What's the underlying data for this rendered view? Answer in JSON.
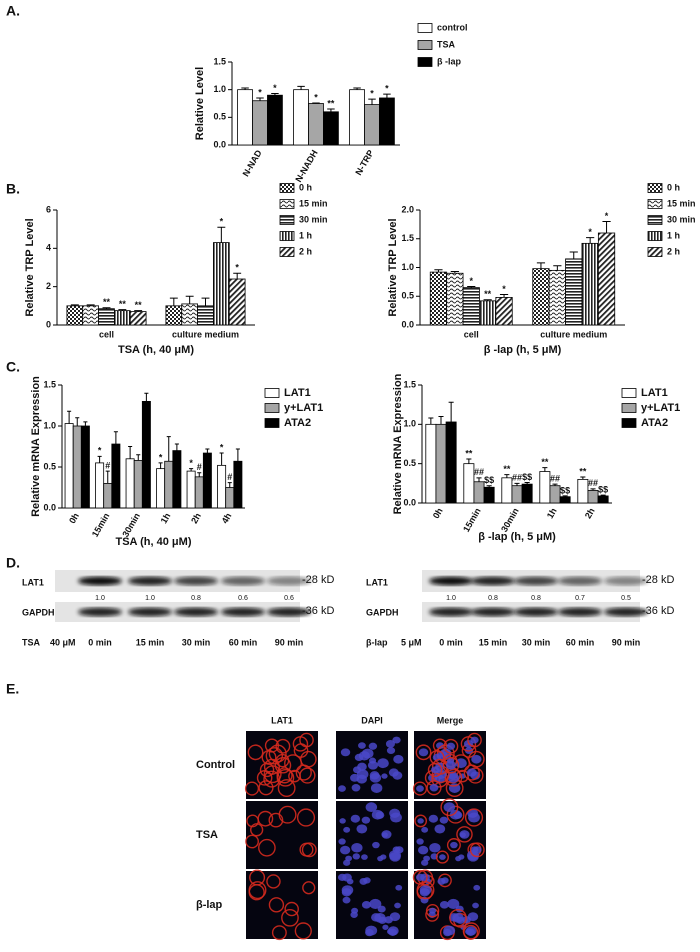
{
  "panel_labels": [
    "A.",
    "B.",
    "C.",
    "D.",
    "E."
  ],
  "chart_data": [
    {
      "type": "bar",
      "ylabel": "Relative Level",
      "categories": [
        "N-NAD",
        "N-NADH",
        "N-TRP"
      ],
      "xtick_rotation": -60,
      "ylim": [
        0,
        1.5
      ],
      "yticks": [
        {
          "value": 0,
          "label": "0.0"
        },
        0.5,
        {
          "value": 1,
          "label": "1.0"
        },
        1.5
      ],
      "series": [
        {
          "name": "control",
          "color": "#ffffff",
          "values": [
            1.0,
            1.0,
            1.0
          ],
          "errors": [
            0.03,
            0.06,
            0.03
          ]
        },
        {
          "name": "TSA",
          "color": "#a6a6a6",
          "values": [
            0.8,
            0.75,
            0.73
          ],
          "errors": [
            0.05,
            0.01,
            0.1
          ],
          "labels": [
            "*",
            "*",
            "*"
          ]
        },
        {
          "name": "β -lap",
          "color": "#000000",
          "values": [
            0.9,
            0.6,
            0.85
          ],
          "errors": [
            0.03,
            0.05,
            0.07
          ],
          "labels": [
            "*",
            "**",
            "*"
          ]
        }
      ]
    },
    {
      "type": "bar",
      "ylabel": "Relative TRP Level",
      "xlabel": "TSA (h, 40 μM)",
      "categories": [
        "cell",
        "culture medium"
      ],
      "ylim": [
        0,
        6
      ],
      "yticks": [
        0,
        2,
        4,
        6
      ],
      "series": [
        {
          "name": "0 h",
          "pattern": "checker",
          "values": [
            1.0,
            1.0
          ],
          "errors": [
            0.05,
            0.4
          ]
        },
        {
          "name": "15 min",
          "pattern": "wave",
          "values": [
            1.0,
            1.1
          ],
          "errors": [
            0.05,
            0.4
          ]
        },
        {
          "name": "30 min",
          "pattern": "horizontal",
          "values": [
            0.85,
            1.0
          ],
          "errors": [
            0.05,
            0.4
          ],
          "labels": [
            "**",
            null
          ]
        },
        {
          "name": "1 h",
          "pattern": "vertical",
          "values": [
            0.75,
            4.3
          ],
          "errors": [
            0.05,
            0.8
          ],
          "labels": [
            "**",
            "*"
          ]
        },
        {
          "name": "2 h",
          "pattern": "diagonal",
          "values": [
            0.7,
            2.4
          ],
          "errors": [
            0.05,
            0.3
          ],
          "labels": [
            "**",
            "*"
          ]
        }
      ]
    },
    {
      "type": "bar",
      "ylabel": "Relative TRP Level",
      "xlabel": "β -lap (h, 5 μM)",
      "categories": [
        "cell",
        "culture medium"
      ],
      "ylim": [
        0,
        2
      ],
      "yticks": [
        {
          "value": 0,
          "label": "0.0"
        },
        0.5,
        {
          "value": 1,
          "label": "1.0"
        },
        1.5,
        {
          "value": 2,
          "label": "2.0"
        }
      ],
      "series": [
        {
          "name": "0 h",
          "pattern": "checker",
          "values": [
            0.92,
            0.98
          ],
          "errors": [
            0.04,
            0.1
          ]
        },
        {
          "name": "15 min",
          "pattern": "wave",
          "values": [
            0.9,
            0.95
          ],
          "errors": [
            0.03,
            0.08
          ]
        },
        {
          "name": "30 min",
          "pattern": "horizontal",
          "values": [
            0.65,
            1.15
          ],
          "errors": [
            0.02,
            0.12
          ],
          "labels": [
            "*",
            null
          ]
        },
        {
          "name": "1 h",
          "pattern": "vertical",
          "values": [
            0.42,
            1.42
          ],
          "errors": [
            0.02,
            0.1
          ],
          "labels": [
            "**",
            "*"
          ]
        },
        {
          "name": "2 h",
          "pattern": "diagonal",
          "values": [
            0.48,
            1.6
          ],
          "errors": [
            0.05,
            0.2
          ],
          "labels": [
            "*",
            "*"
          ]
        }
      ]
    },
    {
      "type": "bar",
      "ylabel": "Relative mRNA Expression",
      "xlabel": "TSA (h, 40 μM)",
      "categories": [
        "0h",
        "15min",
        "30min",
        "1h",
        "2h",
        "4h"
      ],
      "xtick_rotation": -60,
      "ylim": [
        0,
        1.5
      ],
      "yticks": [
        {
          "value": 0,
          "label": "0.0"
        },
        0.5,
        {
          "value": 1,
          "label": "1.0"
        },
        1.5
      ],
      "series": [
        {
          "name": "LAT1",
          "color": "#ffffff",
          "values": [
            1.03,
            0.55,
            0.6,
            0.48,
            0.45,
            0.52
          ],
          "errors": [
            0.15,
            0.08,
            0.15,
            0.07,
            0.03,
            0.15
          ],
          "labels": [
            null,
            "*",
            null,
            "*",
            "*",
            "*"
          ]
        },
        {
          "name": "y+LAT1",
          "color": "#a6a6a6",
          "values": [
            1.0,
            0.3,
            0.58,
            0.57,
            0.38,
            0.25
          ],
          "errors": [
            0.1,
            0.15,
            0.07,
            0.3,
            0.05,
            0.06
          ],
          "labels": [
            null,
            "#",
            null,
            null,
            "#",
            "#"
          ]
        },
        {
          "name": "ATA2",
          "color": "#000000",
          "values": [
            1.0,
            0.78,
            1.3,
            0.7,
            0.67,
            0.57
          ],
          "errors": [
            0.05,
            0.15,
            0.1,
            0.08,
            0.05,
            0.15
          ]
        }
      ]
    },
    {
      "type": "bar",
      "ylabel": "Relative mRNA Expression",
      "xlabel": "β -lap (h, 5 μM)",
      "categories": [
        "0h",
        "15min",
        "30min",
        "1h",
        "2h"
      ],
      "xtick_rotation": -60,
      "ylim": [
        0,
        1.5
      ],
      "yticks": [
        {
          "value": 0,
          "label": "0.0"
        },
        0.5,
        {
          "value": 1,
          "label": "1.0"
        },
        1.5
      ],
      "series": [
        {
          "name": "LAT1",
          "color": "#ffffff",
          "values": [
            1.0,
            0.5,
            0.32,
            0.4,
            0.3
          ],
          "errors": [
            0.08,
            0.06,
            0.04,
            0.05,
            0.03
          ],
          "labels": [
            null,
            "**",
            "**",
            "**",
            "**"
          ]
        },
        {
          "name": "y+LAT1",
          "color": "#a6a6a6",
          "values": [
            1.0,
            0.27,
            0.22,
            0.22,
            0.16
          ],
          "errors": [
            0.1,
            0.05,
            0.03,
            0.02,
            0.02
          ],
          "labels": [
            null,
            "##",
            "##",
            "##",
            "##"
          ]
        },
        {
          "name": "ATA2",
          "color": "#000000",
          "values": [
            1.03,
            0.2,
            0.24,
            0.08,
            0.09
          ],
          "errors": [
            0.25,
            0.02,
            0.02,
            0.01,
            0.01
          ],
          "labels": [
            null,
            "$$",
            "$$",
            "$$",
            "$$"
          ]
        }
      ]
    }
  ],
  "blots": [
    {
      "treatment": "TSA",
      "dose": "40 μM",
      "target": "LAT1",
      "target_size": "-28 kD",
      "control": "GAPDH",
      "control_size": "-36 kD",
      "lanes": [
        "0 min",
        "15 min",
        "30 min",
        "60 min",
        "90 min"
      ],
      "ratios": [
        "1.0",
        "1.0",
        "0.8",
        "0.6",
        "0.6"
      ]
    },
    {
      "treatment": "β-lap",
      "dose": "5 μM",
      "target": "LAT1",
      "target_size": "-28 kD",
      "control": "GAPDH",
      "control_size": "-36 kD",
      "lanes": [
        "0 min",
        "15 min",
        "30 min",
        "60 min",
        "90 min"
      ],
      "ratios": [
        "1.0",
        "0.8",
        "0.8",
        "0.7",
        "0.5"
      ]
    }
  ],
  "images": {
    "columns": [
      "LAT1",
      "DAPI",
      "Merge"
    ],
    "rows": [
      "Control",
      "TSA",
      "β-lap"
    ]
  }
}
